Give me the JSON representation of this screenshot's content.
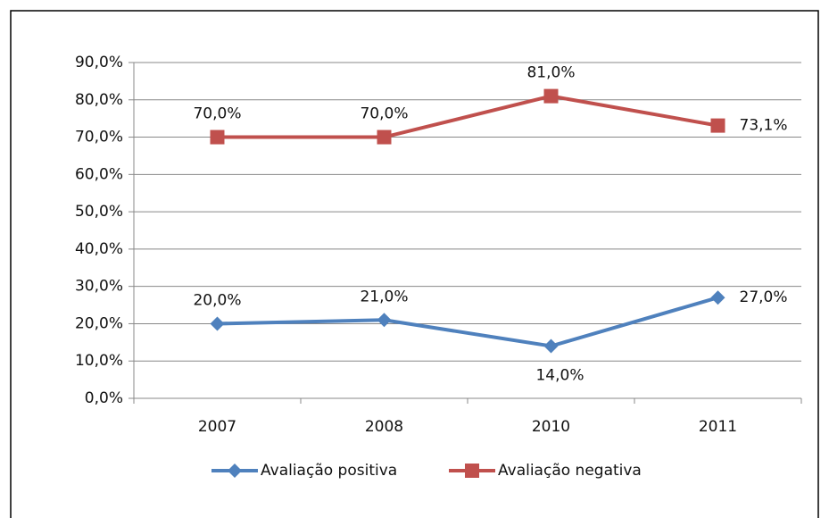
{
  "chart_data": {
    "type": "line",
    "categories": [
      "2007",
      "2008",
      "2010",
      "2011"
    ],
    "series": [
      {
        "name": "Avaliação positiva",
        "color": "#4f81bd",
        "marker": "diamond",
        "values": [
          20,
          21,
          14,
          27
        ],
        "value_labels": [
          "20,0%",
          "21,0%",
          "14,0%",
          "27,0%"
        ]
      },
      {
        "name": "Avaliação negativa",
        "color": "#c0504d",
        "marker": "square",
        "values": [
          70,
          70,
          81,
          73.1
        ],
        "value_labels": [
          "70,0%",
          "70,0%",
          "81,0%",
          "73,1%"
        ]
      }
    ],
    "ylim": [
      0,
      90
    ],
    "yticks": [
      {
        "value": 0,
        "label": "0,0%"
      },
      {
        "value": 10,
        "label": "10,0%"
      },
      {
        "value": 20,
        "label": "20,0%"
      },
      {
        "value": 30,
        "label": "30,0%"
      },
      {
        "value": 40,
        "label": "40,0%"
      },
      {
        "value": 50,
        "label": "50,0%"
      },
      {
        "value": 60,
        "label": "60,0%"
      },
      {
        "value": 70,
        "label": "70,0%"
      },
      {
        "value": 80,
        "label": "80,0%"
      },
      {
        "value": 90,
        "label": "90,0%"
      }
    ],
    "grid": true,
    "legend": "bottom"
  }
}
